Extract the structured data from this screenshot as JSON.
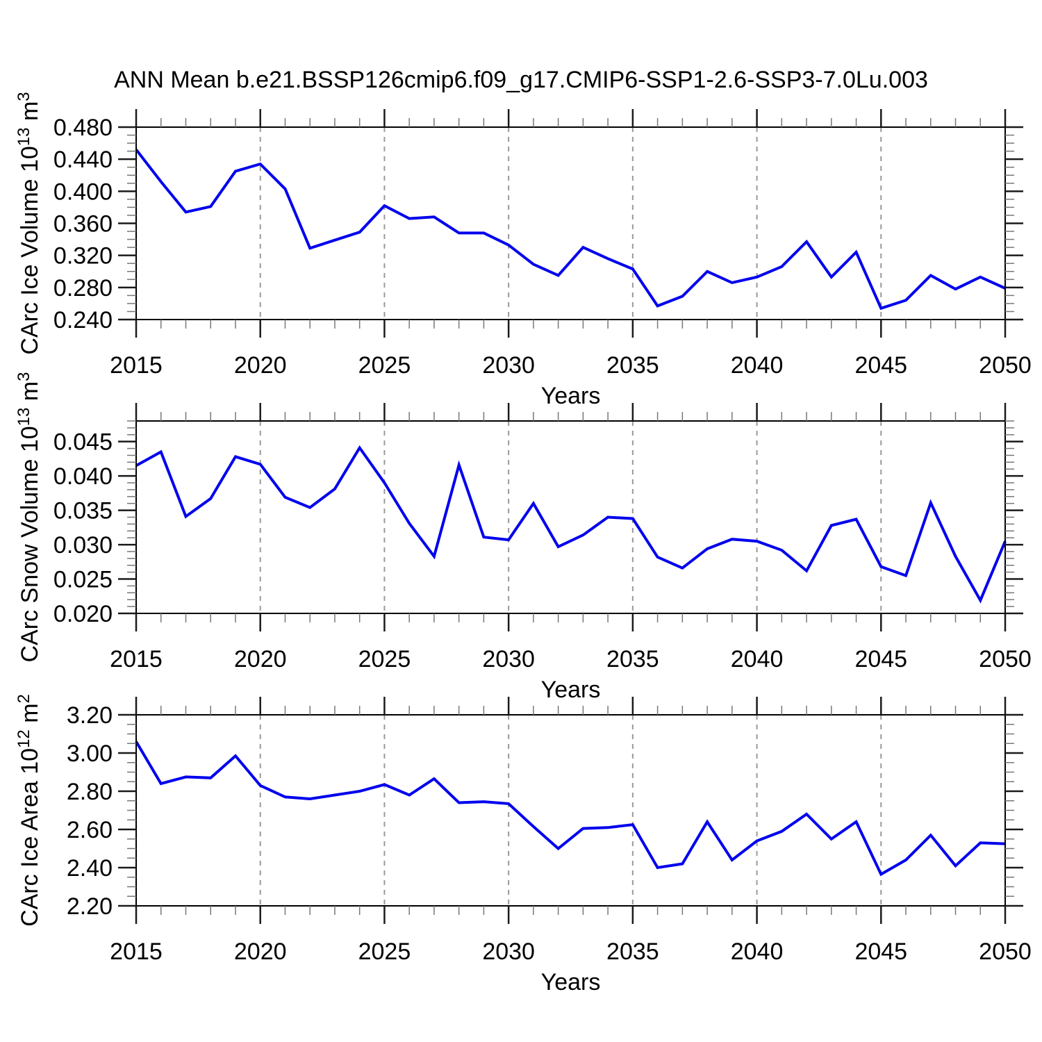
{
  "title": "ANN Mean b.e21.BSSP126cmip6.f09_g17.CMIP6-SSP1-2.6-SSP3-7.0Lu.003",
  "colors": {
    "line": "#0000ee",
    "grid": "#999999",
    "frame": "#000000",
    "tick_major": "#1a1a1a",
    "tick_minor": "#777777",
    "text": "#000000"
  },
  "years": [
    2015,
    2016,
    2017,
    2018,
    2019,
    2020,
    2021,
    2022,
    2023,
    2024,
    2025,
    2026,
    2027,
    2028,
    2029,
    2030,
    2031,
    2032,
    2033,
    2034,
    2035,
    2036,
    2037,
    2038,
    2039,
    2040,
    2041,
    2042,
    2043,
    2044,
    2045,
    2046,
    2047,
    2048,
    2049,
    2050
  ],
  "xaxis": {
    "label": "Years",
    "min": 2015,
    "max": 2050,
    "major_ticks": [
      2015,
      2020,
      2025,
      2030,
      2035,
      2040,
      2045,
      2050
    ],
    "major_tick_labels": [
      "2015",
      "2020",
      "2025",
      "2030",
      "2035",
      "2040",
      "2045",
      "2050"
    ],
    "minor_step": 1,
    "grid_years": [
      2020,
      2025,
      2030,
      2035,
      2040,
      2045
    ]
  },
  "chart_data": [
    {
      "type": "line",
      "id": "carc-ice-volume",
      "ylabel_plain": "CArc Ice Volume 10^13 m^3",
      "ylabel_segments": [
        {
          "text": "CArc Ice Volume 10"
        },
        {
          "text": "13",
          "sup": true
        },
        {
          "text": " m"
        },
        {
          "text": "3",
          "sup": true
        }
      ],
      "xlabel": "Years",
      "ymin": 0.24,
      "ymax": 0.48,
      "yticks": [
        0.24,
        0.28,
        0.32,
        0.36,
        0.4,
        0.44,
        0.48
      ],
      "ytick_labels": [
        "0.240",
        "0.280",
        "0.320",
        "0.360",
        "0.400",
        "0.440",
        "0.480"
      ],
      "yminor_step": 0.01,
      "values": [
        0.452,
        0.412,
        0.374,
        0.381,
        0.425,
        0.434,
        0.403,
        0.329,
        0.339,
        0.349,
        0.382,
        0.366,
        0.368,
        0.348,
        0.348,
        0.333,
        0.309,
        0.295,
        0.33,
        0.316,
        0.303,
        0.257,
        0.269,
        0.3,
        0.286,
        0.293,
        0.306,
        0.337,
        0.293,
        0.324,
        0.254,
        0.264,
        0.295,
        0.278,
        0.293,
        0.279
      ]
    },
    {
      "type": "line",
      "id": "carc-snow-volume",
      "ylabel_plain": "CArc Snow Volume 10^13 m^3",
      "ylabel_segments": [
        {
          "text": "CArc Snow Volume 10"
        },
        {
          "text": "13",
          "sup": true
        },
        {
          "text": " m"
        },
        {
          "text": "3",
          "sup": true
        }
      ],
      "xlabel": "Years",
      "ymin": 0.02,
      "ymax": 0.048,
      "yticks": [
        0.02,
        0.025,
        0.03,
        0.035,
        0.04,
        0.045
      ],
      "ytick_labels": [
        "0.020",
        "0.025",
        "0.030",
        "0.035",
        "0.040",
        "0.045"
      ],
      "yminor_step": 0.001,
      "values": [
        0.0415,
        0.0435,
        0.0341,
        0.0367,
        0.0428,
        0.0417,
        0.0369,
        0.0354,
        0.0381,
        0.0441,
        0.039,
        0.0331,
        0.0283,
        0.0416,
        0.0311,
        0.0307,
        0.036,
        0.0297,
        0.0314,
        0.034,
        0.0338,
        0.0282,
        0.0266,
        0.0294,
        0.0308,
        0.0305,
        0.0292,
        0.0262,
        0.0328,
        0.0337,
        0.0268,
        0.0255,
        0.0361,
        0.0283,
        0.0219,
        0.0305
      ]
    },
    {
      "type": "line",
      "id": "carc-ice-area",
      "ylabel_plain": "CArc Ice Area 10^12 m^2",
      "ylabel_segments": [
        {
          "text": "CArc Ice Area 10"
        },
        {
          "text": "12",
          "sup": true
        },
        {
          "text": " m"
        },
        {
          "text": "2",
          "sup": true
        }
      ],
      "xlabel": "Years",
      "ymin": 2.2,
      "ymax": 3.2,
      "yticks": [
        2.2,
        2.4,
        2.6,
        2.8,
        3.0,
        3.2
      ],
      "ytick_labels": [
        "2.20",
        "2.40",
        "2.60",
        "2.80",
        "3.00",
        "3.20"
      ],
      "yminor_step": 0.05,
      "values": [
        3.06,
        2.84,
        2.875,
        2.87,
        2.985,
        2.83,
        2.77,
        2.76,
        2.78,
        2.8,
        2.835,
        2.78,
        2.865,
        2.74,
        2.745,
        2.735,
        2.615,
        2.5,
        2.605,
        2.61,
        2.625,
        2.4,
        2.42,
        2.64,
        2.44,
        2.54,
        2.59,
        2.68,
        2.55,
        2.64,
        2.365,
        2.44,
        2.57,
        2.41,
        2.53,
        2.525
      ]
    }
  ]
}
